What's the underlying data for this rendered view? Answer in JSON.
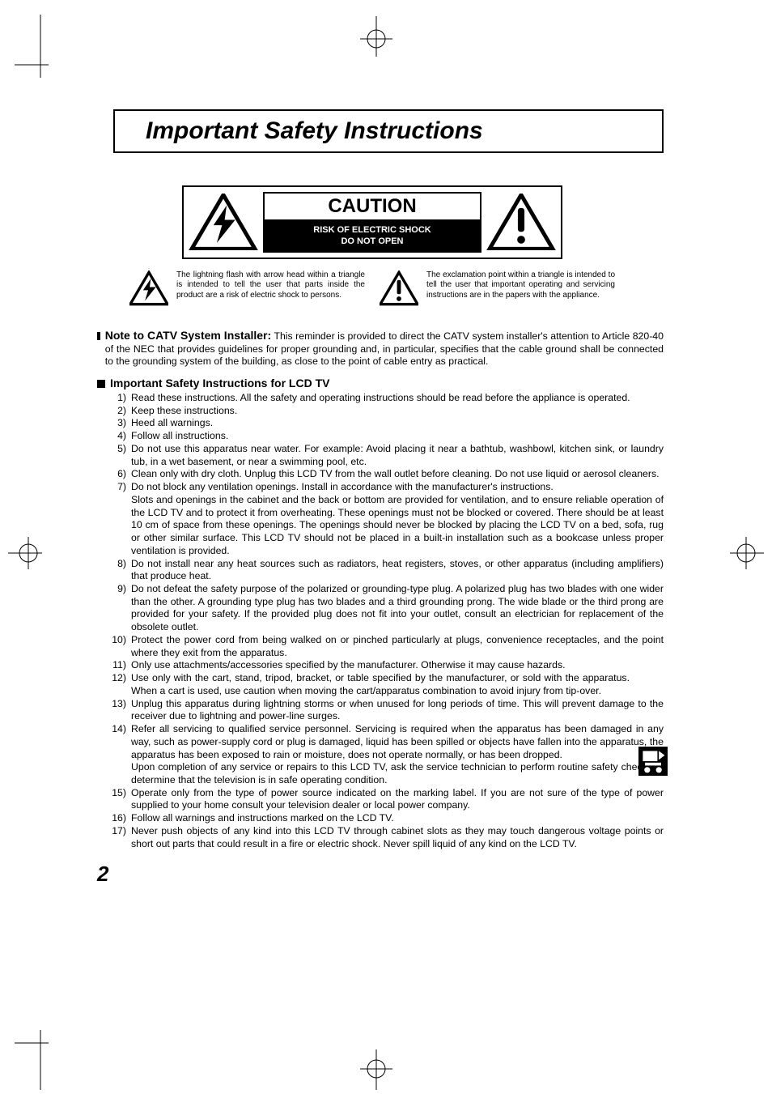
{
  "page_number": "2",
  "title": "Important Safety Instructions",
  "caution": {
    "heading": "CAUTION",
    "line1": "RISK OF ELECTRIC SHOCK",
    "line2": "DO NOT OPEN"
  },
  "explain": {
    "lightning": "The lightning flash with arrow head within a triangle is intended to tell the user that parts inside the product are a risk of electric shock to persons.",
    "exclaim": "The exclamation point within a triangle is intended to tell the user that important operating and servicing instructions are in the papers with the appliance."
  },
  "catv": {
    "title": "Note to CATV System Installer:",
    "body": "This reminder is provided to direct the CATV system installer's attention to Article 820-40 of the NEC that provides guidelines for proper grounding and, in particular, specifies that the cable ground shall be connected to the grounding system of the building, as close to the point of cable entry as practical."
  },
  "instr": {
    "title": "Important Safety Instructions for LCD TV",
    "items": [
      "Read these instructions. All the safety and operating instructions should be read before the appliance is operated.",
      "Keep these instructions.",
      "Heed all warnings.",
      "Follow all instructions.",
      "Do not use this apparatus near water. For example: Avoid  placing it near a bathtub, washbowl, kitchen sink, or laundry tub, in a wet basement, or near a swimming pool, etc.",
      "Clean only with dry cloth. Unplug this LCD TV from the wall outlet before cleaning. Do not use liquid or aerosol cleaners.",
      "Do not block any ventilation openings. Install in accordance with the manufacturer's instructions.\nSlots and openings in the cabinet and the back or bottom are provided for ventilation, and to ensure reliable operation of the LCD TV and to protect it from overheating. These openings must not be blocked or covered. There should be at least 10 cm of space from these openings. The openings should never be blocked by placing the LCD TV on a bed, sofa, rug or other similar surface. This LCD TV should not be placed in a built-in installation such as a bookcase unless proper ventilation is provided.",
      " Do not install near any heat sources such as radiators, heat registers, stoves, or other apparatus (including amplifiers) that produce heat.",
      " Do not defeat the safety purpose of the polarized or grounding-type plug. A polarized plug has two blades with one wider than the other. A grounding type plug has two blades and a third grounding prong. The wide blade or the third prong are provided for your safety. If the provided plug does not fit into your outlet, consult an electrician for replacement of the obsolete outlet.",
      " Protect the power cord from being walked on or pinched particularly at plugs, convenience receptacles, and the point where they exit from the apparatus.",
      "Only use attachments/accessories specified by the manufacturer. Otherwise it may cause hazards.",
      "Use only with the cart, stand, tripod, bracket, or table specified by the manufacturer, or sold with the apparatus.  When a cart is used, use caution when moving the cart/apparatus combination to avoid injury from tip-over.",
      "Unplug this apparatus during lightning storms or when unused for long periods of time.  This will prevent damage to the receiver due to lightning and power-line surges.",
      "Refer all servicing to qualified service personnel.  Servicing is required when the apparatus has been damaged in any way, such as power-supply cord or plug is damaged, liquid has been spilled or objects have fallen into the apparatus, the apparatus has been exposed to rain or moisture, does not operate normally, or has been dropped.\nUpon completion of any service or repairs to this LCD TV, ask the service technician to perform routine safety checks to determine that the television is in safe operating condition.",
      "Operate only from the type of power source indicated on the marking label. If you are not sure of the type of power supplied to your home consult your television dealer or local power company.",
      "Follow all warnings and instructions marked on the LCD TV.",
      "Never push objects of any kind into this LCD TV through cabinet slots as they may touch dangerous voltage points or short out parts that could result in a fire or electric shock. Never spill liquid of any kind on the LCD TV."
    ]
  },
  "colors": {
    "fg": "#000000",
    "bg": "#ffffff"
  }
}
